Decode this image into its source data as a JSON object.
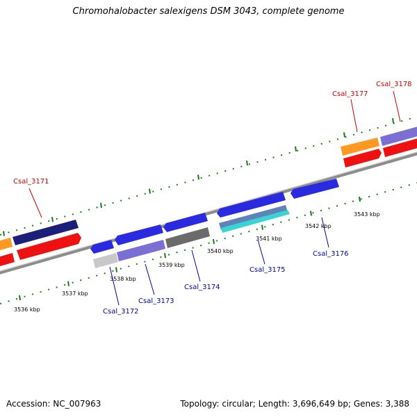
{
  "title": "Chromohalobacter salexigens DSM 3043, complete genome",
  "footer": {
    "accession": "Accession: NC_007963",
    "stats": "Topology: circular; Length: 3,696,649 bp; Genes: 3,388"
  },
  "colors": {
    "backbone": "#8c8c8c",
    "tick_green": "#1a7a1a",
    "label_forward": "#cc0000",
    "label_reverse": "#0000aa",
    "orange": "#ff9922",
    "navy": "#1b1f7a",
    "red": "#ee1111",
    "blue": "#2a2ae0",
    "lavender": "#7b6fd6",
    "gray": "#6b6b6b",
    "light_gray": "#c8c8c8",
    "steel": "#5f82b8",
    "cyan": "#3ad4d4"
  },
  "ticks": [
    {
      "label": "3536 kbp"
    },
    {
      "label": "3537 kbp"
    },
    {
      "label": "3538 kbp"
    },
    {
      "label": "3539 kbp"
    },
    {
      "label": "3540 kbp"
    },
    {
      "label": "3541 kbp"
    },
    {
      "label": "3542 kbp"
    },
    {
      "label": "3543 kbp"
    }
  ],
  "gene_labels": [
    {
      "text": "Csal_3171",
      "strand": "forward"
    },
    {
      "text": "Csal_3177",
      "strand": "forward"
    },
    {
      "text": "Csal_3178",
      "strand": "forward"
    },
    {
      "text": "Csal_3172",
      "strand": "reverse"
    },
    {
      "text": "Csal_3173",
      "strand": "reverse"
    },
    {
      "text": "Csal_3174",
      "strand": "reverse"
    },
    {
      "text": "Csal_3175",
      "strand": "reverse"
    },
    {
      "text": "Csal_3176",
      "strand": "reverse"
    }
  ]
}
